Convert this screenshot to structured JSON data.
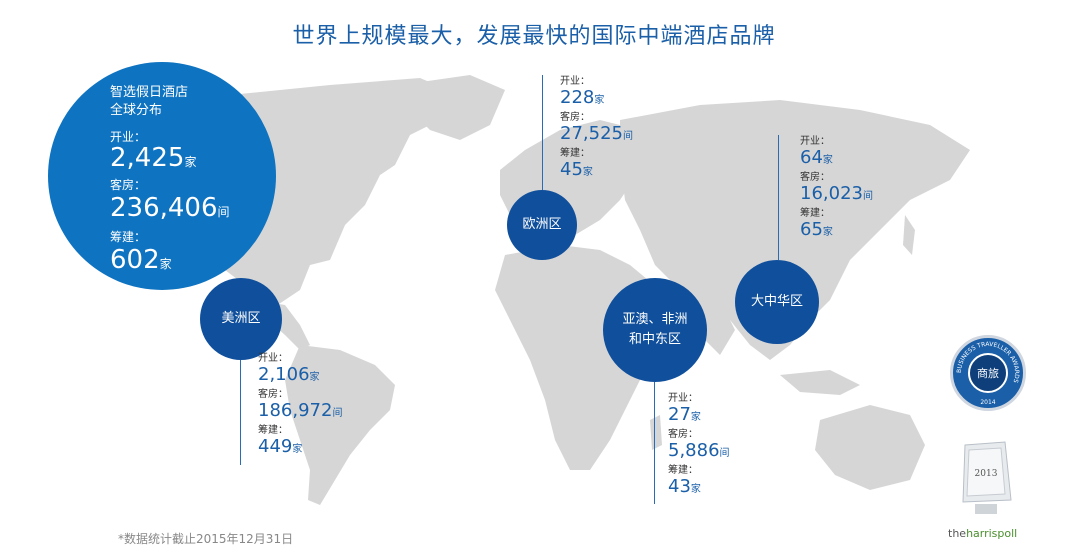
{
  "title": "世界上规模最大，发展最快的国际中端酒店品牌",
  "global": {
    "heading_line1": "智选假日酒店",
    "heading_line2": "全球分布",
    "open_label": "开业：",
    "open_value": "2,425",
    "open_unit": "家",
    "rooms_label": "客房：",
    "rooms_value": "236,406",
    "rooms_unit": "间",
    "pipeline_label": "筹建：",
    "pipeline_value": "602",
    "pipeline_unit": "家"
  },
  "regions": {
    "americas": {
      "name": "美洲区",
      "open_label": "开业：",
      "open": "2,106",
      "open_unit": "家",
      "rooms_label": "客房：",
      "rooms": "186,972",
      "rooms_unit": "间",
      "pipeline_label": "筹建：",
      "pipeline": "449",
      "pipeline_unit": "家"
    },
    "europe": {
      "name": "欧洲区",
      "open_label": "开业：",
      "open": "228",
      "open_unit": "家",
      "rooms_label": "客房：",
      "rooms": "27,525",
      "rooms_unit": "间",
      "pipeline_label": "筹建：",
      "pipeline": "45",
      "pipeline_unit": "家"
    },
    "amea": {
      "name_line1": "亚澳、非洲",
      "name_line2": "和中东区",
      "open_label": "开业：",
      "open": "27",
      "open_unit": "家",
      "rooms_label": "客房：",
      "rooms": "5,886",
      "rooms_unit": "间",
      "pipeline_label": "筹建：",
      "pipeline": "43",
      "pipeline_unit": "家"
    },
    "greater_china": {
      "name": "大中华区",
      "open_label": "开业：",
      "open": "64",
      "open_unit": "家",
      "rooms_label": "客房：",
      "rooms": "16,023",
      "rooms_unit": "间",
      "pipeline_label": "筹建：",
      "pipeline": "65",
      "pipeline_unit": "家"
    }
  },
  "footnote": "*数据统计截止2015年12月31日",
  "badge": {
    "center_text": "商旅",
    "ring_text": "BUSINESS TRAVELLER AWARDS",
    "year": "2014"
  },
  "trophy": {
    "year": "2013"
  },
  "harris": {
    "prefix": "the",
    "name": "harrispoll"
  },
  "colors": {
    "accent": "#0e73c1",
    "region": "#0f4f9c",
    "land": "#d6d6d6",
    "text": "#1a5fa8"
  }
}
